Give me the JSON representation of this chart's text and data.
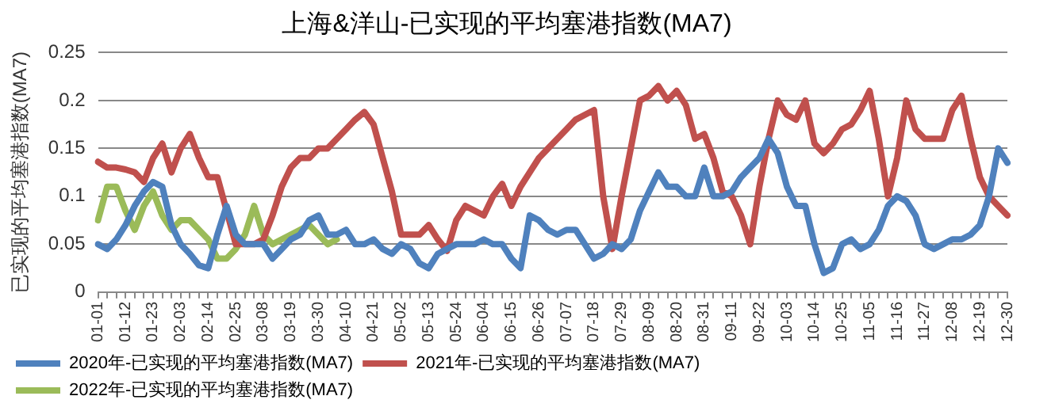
{
  "chart_data": {
    "type": "line",
    "title": "上海&洋山-已实现的平均塞港指数(MA7)",
    "ylabel": "已实现的平均塞港指数(MA7)",
    "categories": [
      "01-01",
      null,
      null,
      "01-12",
      null,
      null,
      "01-23",
      null,
      null,
      "02-03",
      null,
      null,
      "02-14",
      null,
      null,
      "02-25",
      null,
      null,
      "03-08",
      null,
      null,
      "03-19",
      null,
      null,
      "03-30",
      null,
      null,
      "04-10",
      null,
      null,
      "04-21",
      null,
      null,
      "05-02",
      null,
      null,
      "05-13",
      null,
      null,
      "05-24",
      null,
      null,
      "06-04",
      null,
      null,
      "06-15",
      null,
      null,
      "06-26",
      null,
      null,
      "07-07",
      null,
      null,
      "07-18",
      null,
      null,
      "07-29",
      null,
      null,
      "08-09",
      null,
      null,
      "08-20",
      null,
      null,
      "08-31",
      null,
      null,
      "09-11",
      null,
      null,
      "09-22",
      null,
      null,
      "10-03",
      null,
      null,
      "10-14",
      null,
      null,
      "10-25",
      null,
      null,
      "11-05",
      null,
      null,
      "11-16",
      null,
      null,
      "11-27",
      null,
      null,
      "12-08",
      null,
      null,
      "12-19",
      null,
      null,
      "12-30"
    ],
    "series": [
      {
        "name": "2020年-已实现的平均塞港指数(MA7)",
        "color": "#4f81bd",
        "values": [
          0.05,
          0.045,
          0.055,
          0.07,
          0.09,
          0.105,
          0.115,
          0.11,
          0.07,
          0.05,
          0.04,
          0.028,
          0.025,
          0.06,
          0.09,
          0.06,
          0.05,
          0.05,
          0.05,
          0.035,
          0.045,
          0.055,
          0.06,
          0.075,
          0.08,
          0.06,
          0.06,
          0.065,
          0.05,
          0.05,
          0.055,
          0.045,
          0.04,
          0.05,
          0.045,
          0.03,
          0.025,
          0.04,
          0.045,
          0.05,
          0.05,
          0.05,
          0.055,
          0.05,
          0.05,
          0.035,
          0.025,
          0.08,
          0.075,
          0.065,
          0.06,
          0.065,
          0.065,
          0.05,
          0.035,
          0.04,
          0.05,
          0.045,
          0.055,
          0.085,
          0.105,
          0.125,
          0.11,
          0.11,
          0.1,
          0.1,
          0.13,
          0.1,
          0.1,
          0.105,
          0.12,
          0.13,
          0.14,
          0.16,
          0.145,
          0.11,
          0.09,
          0.09,
          0.05,
          0.02,
          0.025,
          0.05,
          0.055,
          0.045,
          0.05,
          0.065,
          0.09,
          0.1,
          0.095,
          0.08,
          0.05,
          0.045,
          0.05,
          0.055,
          0.055,
          0.06,
          0.07,
          0.1,
          0.15,
          0.135
        ]
      },
      {
        "name": "2021年-已实现的平均塞港指数(MA7)",
        "color": "#c0504d",
        "values": [
          0.136,
          0.13,
          0.13,
          0.128,
          0.125,
          0.115,
          0.14,
          0.155,
          0.125,
          0.15,
          0.165,
          0.14,
          0.12,
          0.12,
          0.085,
          0.05,
          0.05,
          0.05,
          0.055,
          0.08,
          0.11,
          0.13,
          0.14,
          0.14,
          0.15,
          0.15,
          0.16,
          0.17,
          0.18,
          0.188,
          0.175,
          0.14,
          0.105,
          0.06,
          0.06,
          0.06,
          0.07,
          0.055,
          0.043,
          0.075,
          0.09,
          0.085,
          0.08,
          0.1,
          0.113,
          0.09,
          0.11,
          0.125,
          0.14,
          0.15,
          0.16,
          0.17,
          0.18,
          0.185,
          0.19,
          0.1,
          0.045,
          0.1,
          0.15,
          0.2,
          0.205,
          0.215,
          0.2,
          0.21,
          0.195,
          0.16,
          0.165,
          0.14,
          0.105,
          0.1,
          0.08,
          0.05,
          0.11,
          0.16,
          0.2,
          0.185,
          0.18,
          0.2,
          0.155,
          0.145,
          0.155,
          0.17,
          0.175,
          0.19,
          0.21,
          0.16,
          0.1,
          0.14,
          0.2,
          0.17,
          0.16,
          0.16,
          0.16,
          0.19,
          0.205,
          0.16,
          0.12,
          0.1,
          0.09,
          0.08
        ]
      },
      {
        "name": "2022年-已实现的平均塞港指数(MA7)",
        "color": "#9bbb59",
        "values": [
          0.075,
          0.11,
          0.11,
          0.085,
          0.065,
          0.09,
          0.105,
          0.08,
          0.065,
          0.075,
          0.075,
          0.065,
          0.055,
          0.035,
          0.035,
          0.045,
          0.06,
          0.09,
          0.06,
          0.05,
          0.055,
          0.06,
          0.065,
          0.07,
          0.06,
          0.05,
          0.055,
          null,
          null,
          null,
          null,
          null,
          null,
          null,
          null,
          null,
          null,
          null,
          null,
          null,
          null,
          null,
          null,
          null,
          null,
          null,
          null,
          null,
          null,
          null,
          null,
          null,
          null,
          null,
          null,
          null,
          null,
          null,
          null,
          null,
          null,
          null,
          null,
          null,
          null,
          null,
          null,
          null,
          null,
          null,
          null,
          null,
          null,
          null,
          null,
          null,
          null,
          null,
          null,
          null,
          null,
          null,
          null,
          null,
          null,
          null,
          null,
          null,
          null,
          null,
          null,
          null,
          null,
          null,
          null,
          null,
          null,
          null,
          null,
          null
        ]
      }
    ],
    "ylim": [
      0,
      0.25
    ],
    "yticks": [
      0,
      0.05,
      0.1,
      0.15,
      0.2,
      0.25
    ],
    "grid": "y",
    "legend": "bottom",
    "marker": "none",
    "line_style": "solid"
  }
}
